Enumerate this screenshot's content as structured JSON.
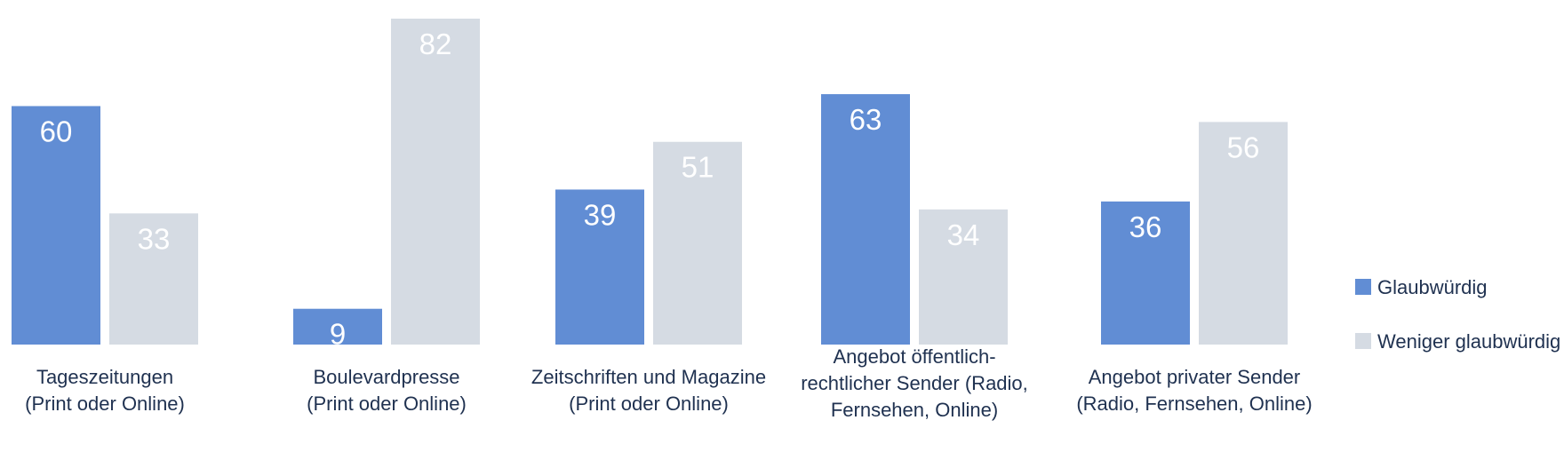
{
  "chart_data": {
    "type": "bar",
    "categories": [
      [
        "Tageszeitungen",
        "(Print oder Online)"
      ],
      [
        "Boulevardpresse",
        "(Print oder Online)"
      ],
      [
        "Zeitschriften und Magazine",
        "(Print oder Online)"
      ],
      [
        "Angebot öffentlich-",
        "rechtlicher Sender (Radio,",
        "Fernsehen, Online)"
      ],
      [
        "Angebot privater Sender",
        "(Radio, Fernsehen, Online)"
      ]
    ],
    "series": [
      {
        "name": "Glaubwürdig",
        "values": [
          60,
          9,
          39,
          63,
          36
        ],
        "color": "#618dd4"
      },
      {
        "name": "Weniger glaubwürdig",
        "values": [
          33,
          82,
          51,
          34,
          56
        ],
        "color": "#d5dbe3"
      }
    ],
    "ylim": [
      0,
      82
    ],
    "grid": false,
    "legend_position": "right",
    "title": "",
    "xlabel": "",
    "ylabel": ""
  }
}
